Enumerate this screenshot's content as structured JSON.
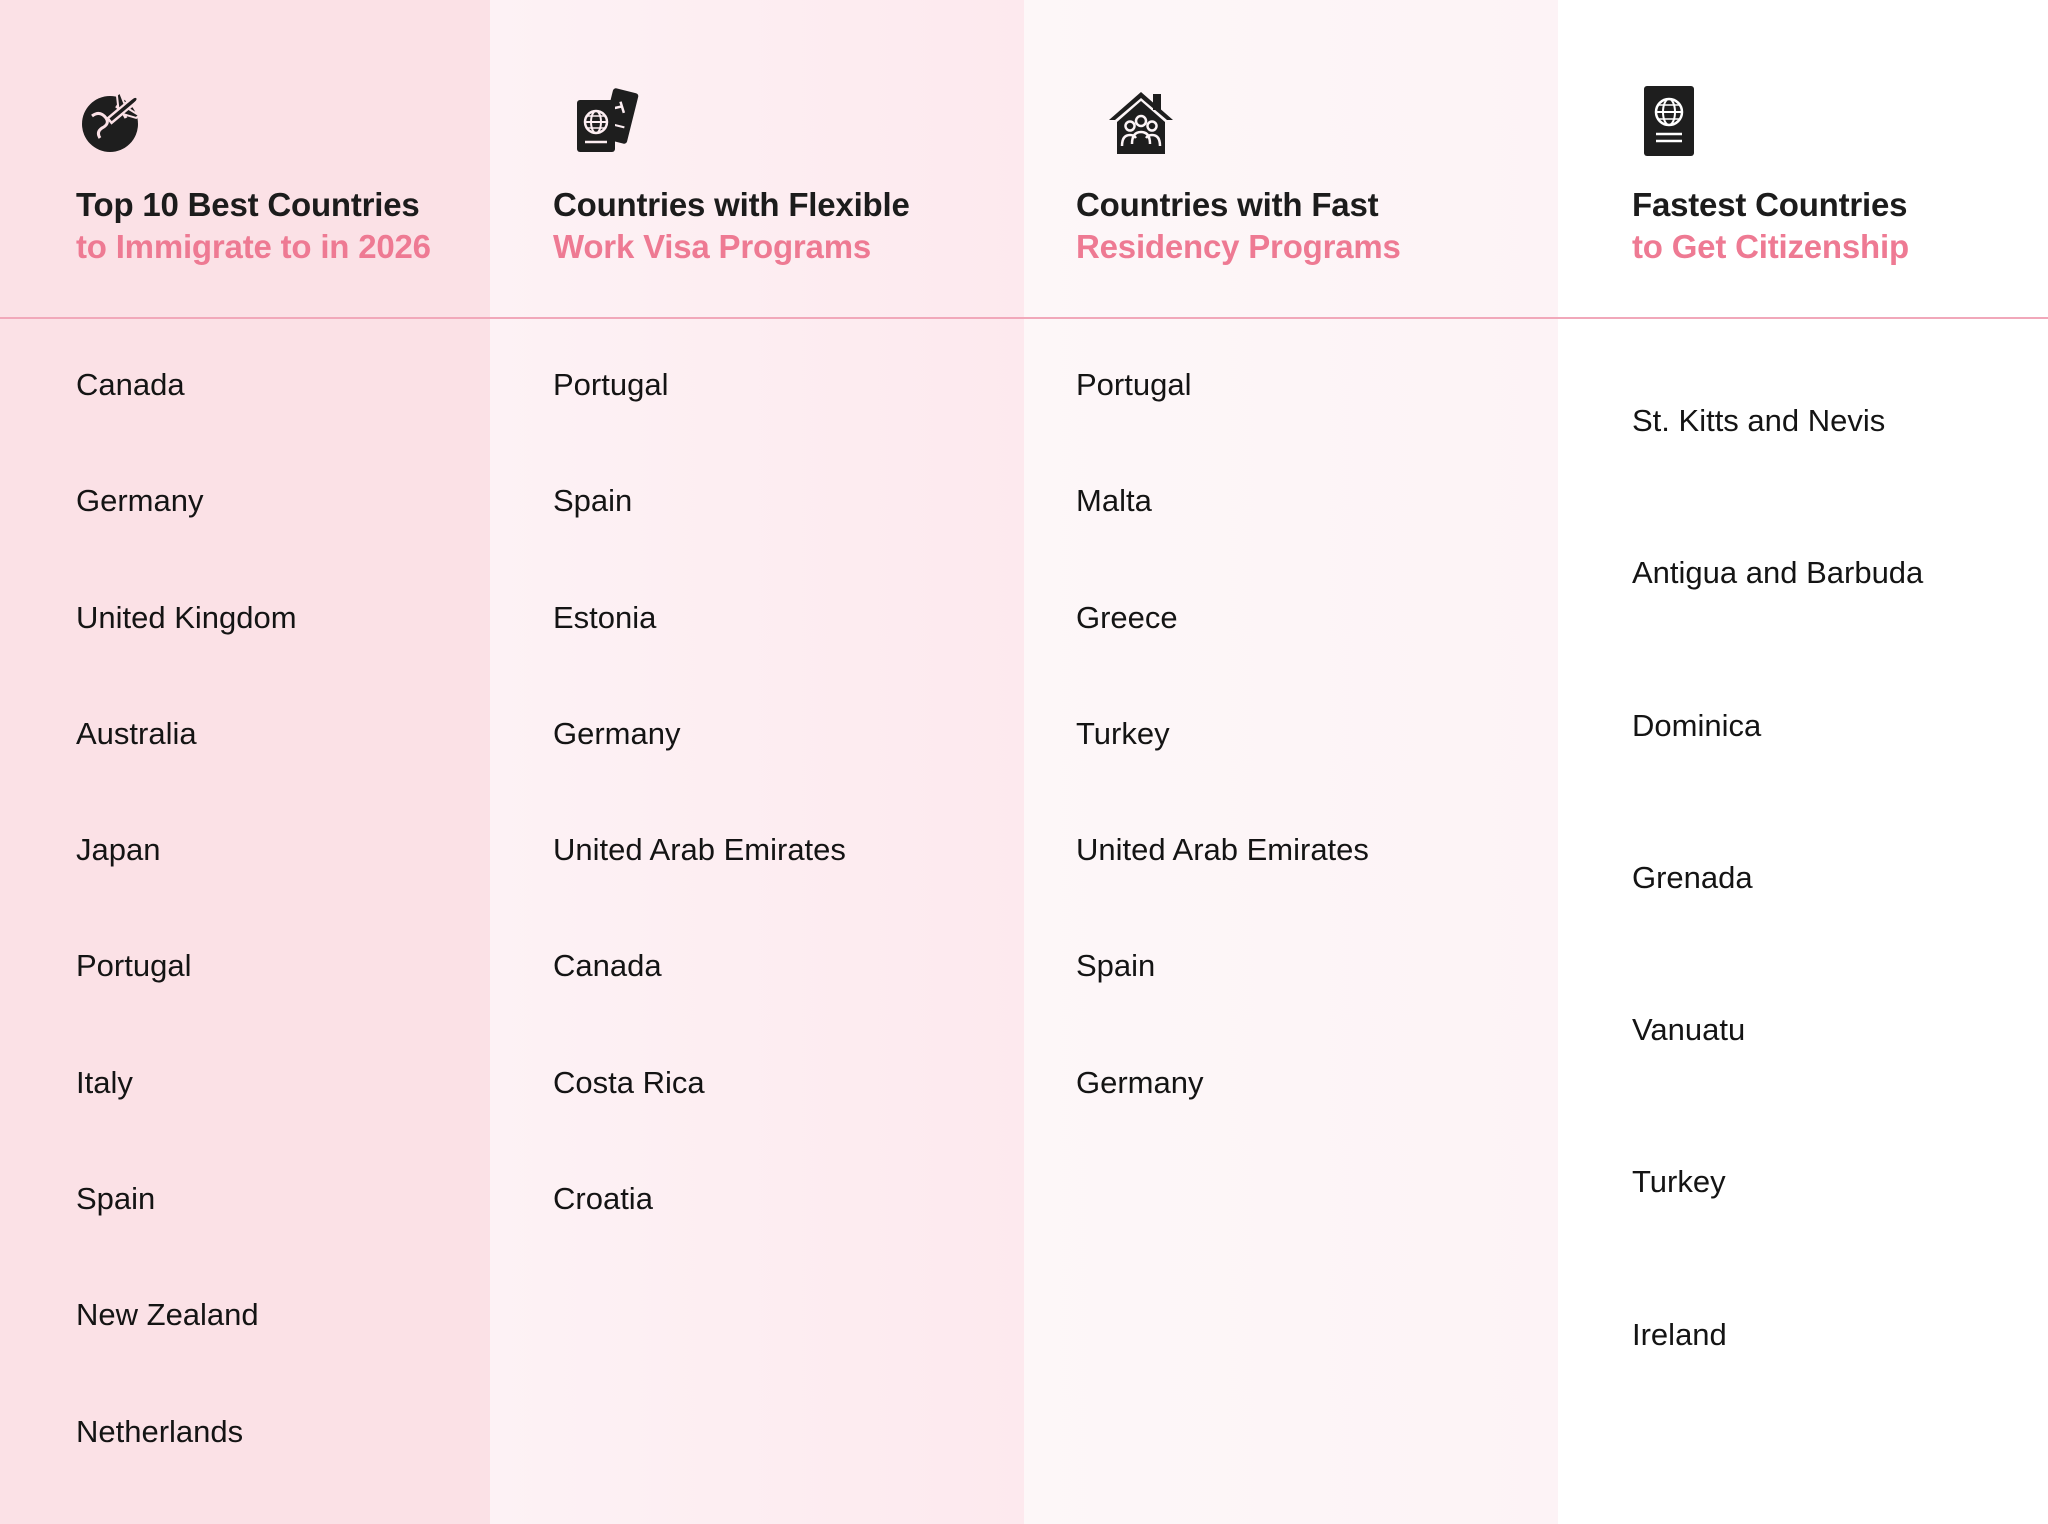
{
  "columns": [
    {
      "icon": "globe-plane-icon",
      "heading_line1": "Top 10 Best Countries",
      "heading_line2": "to Immigrate to in 2026",
      "items": [
        "Canada",
        "Germany",
        "United Kingdom",
        "Australia",
        "Japan",
        "Portugal",
        "Italy",
        "Spain",
        "New Zealand",
        "Netherlands"
      ]
    },
    {
      "icon": "passport-ticket-icon",
      "heading_line1": "Countries with Flexible",
      "heading_line2": "Work Visa Programs",
      "items": [
        "Portugal",
        "Spain",
        "Estonia",
        "Germany",
        "United Arab Emirates",
        "Canada",
        "Costa Rica",
        "Croatia"
      ]
    },
    {
      "icon": "house-family-icon",
      "heading_line1": "Countries with Fast",
      "heading_line2": "Residency Programs",
      "items": [
        "Portugal",
        "Malta",
        "Greece",
        "Turkey",
        "United Arab Emirates",
        "Spain",
        "Germany"
      ]
    },
    {
      "icon": "passport-icon",
      "heading_line1": "Fastest Countries",
      "heading_line2": "to Get Citizenship",
      "items": [
        "St. Kitts and Nevis",
        "Antigua and Barbuda",
        "Dominica",
        "Grenada",
        "Vanuatu",
        "Turkey",
        " Ireland"
      ]
    }
  ],
  "colors": {
    "accent": "#ee7a93",
    "heading": "#1c1c1c",
    "divider": "#f1a8ba",
    "col1_bg": "#fbe1e6"
  }
}
